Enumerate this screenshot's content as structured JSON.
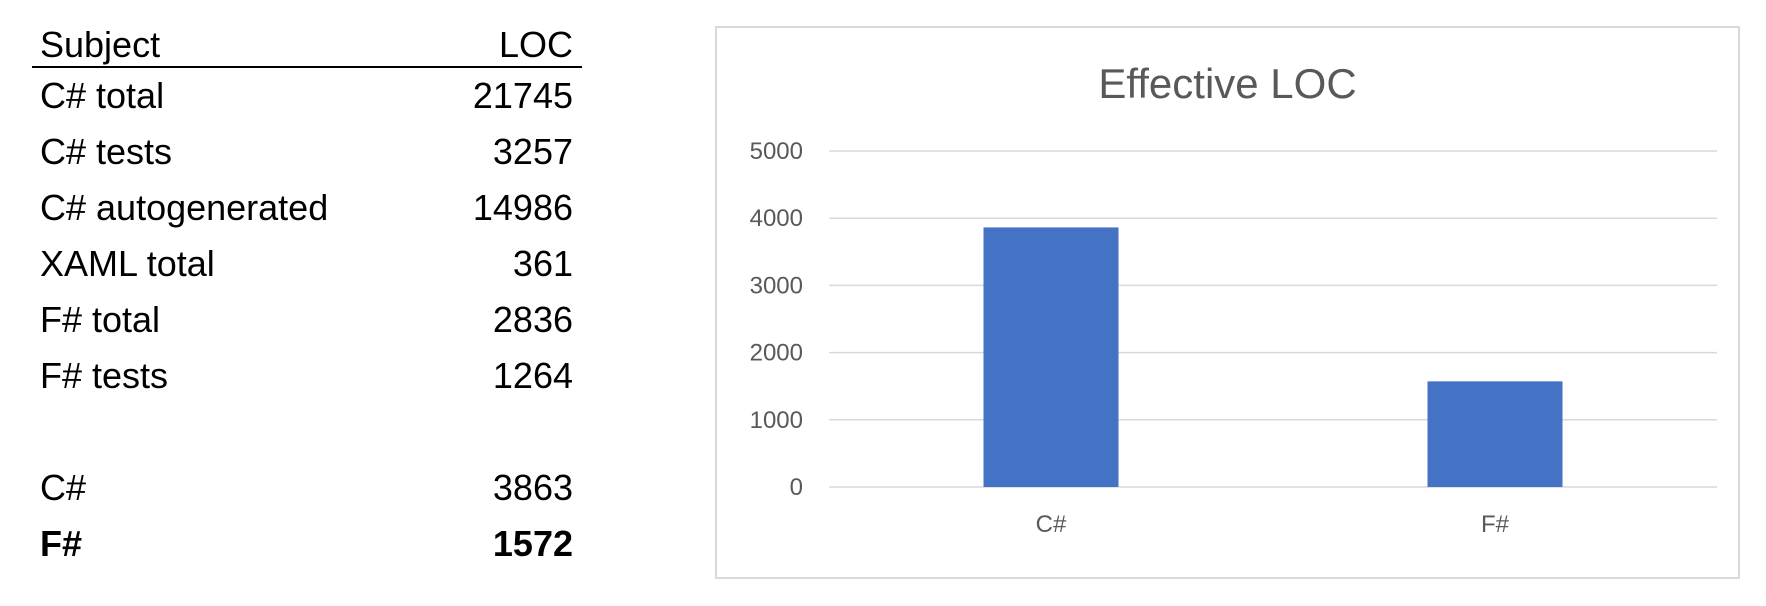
{
  "table": {
    "header": {
      "subject": "Subject",
      "loc": "LOC"
    },
    "rows": [
      {
        "subject": "C# total",
        "loc": "21745"
      },
      {
        "subject": "C# tests",
        "loc": "3257"
      },
      {
        "subject": "C# autogenerated",
        "loc": "14986"
      },
      {
        "subject": "XAML total",
        "loc": "361"
      },
      {
        "subject": "F# total",
        "loc": "2836"
      },
      {
        "subject": "F# tests",
        "loc": "1264"
      },
      {
        "subject": "C#",
        "loc": "3863"
      },
      {
        "subject": "F#",
        "loc": "1572"
      }
    ]
  },
  "chart_data": {
    "type": "bar",
    "title": "Effective LOC",
    "categories": [
      "C#",
      "F#"
    ],
    "values": [
      3863,
      1572
    ],
    "xlabel": "",
    "ylabel": "",
    "ylim": [
      0,
      5000
    ],
    "yticks": [
      0,
      1000,
      2000,
      3000,
      4000,
      5000
    ],
    "grid": true,
    "legend": "none",
    "bar_color": "#4472C4",
    "grid_color": "#d9d9d9",
    "text_color": "#595959"
  }
}
